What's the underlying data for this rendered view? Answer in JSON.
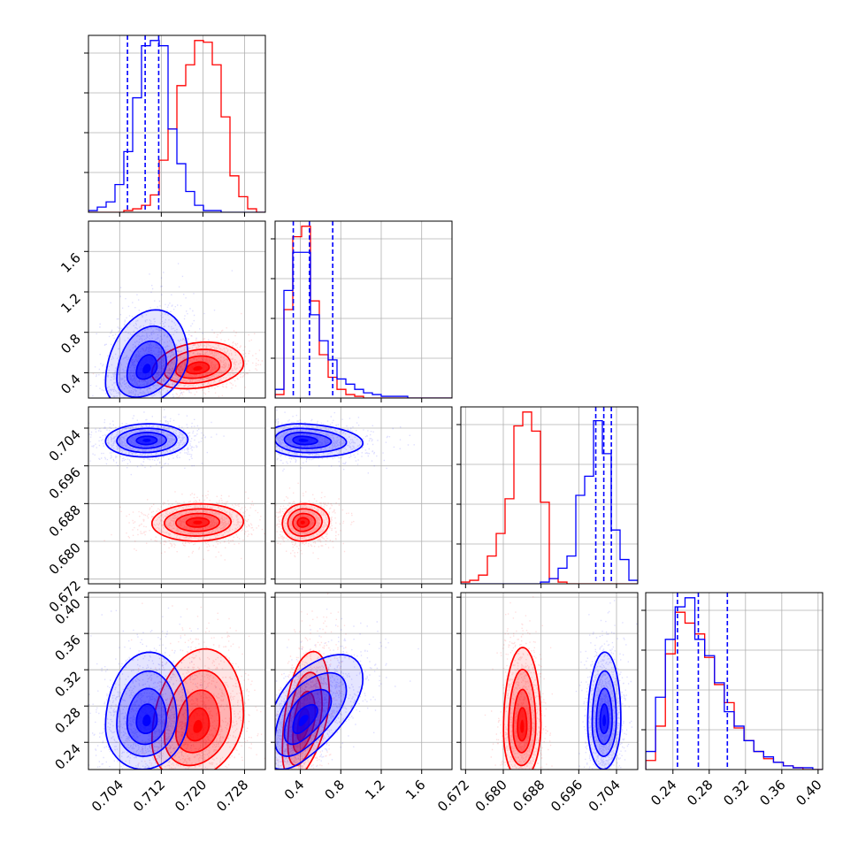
{
  "chart_data": {
    "type": "corner",
    "colors": {
      "series_a": "#0000ff",
      "series_b": "#ff0000",
      "grid": "#b0b0b0"
    },
    "grid": true,
    "quantile_lines": "dashed",
    "parameters": [
      {
        "id": "p0",
        "range": [
          0.698,
          0.732
        ],
        "ticks": [
          0.704,
          0.712,
          0.72,
          0.728
        ],
        "tick_labels": [
          "0.704",
          "0.712",
          "0.720",
          "0.728"
        ],
        "quantiles_blue": [
          0.7055,
          0.7089,
          0.7115
        ]
      },
      {
        "id": "p1",
        "range": [
          0.15,
          1.9
        ],
        "ticks": [
          0.4,
          0.8,
          1.2,
          1.6
        ],
        "tick_labels": [
          "0.4",
          "0.8",
          "1.2",
          "1.6"
        ],
        "quantiles_blue": [
          0.33,
          0.49,
          0.72
        ]
      },
      {
        "id": "p2",
        "range": [
          0.671,
          0.7085
        ],
        "ticks": [
          0.672,
          0.68,
          0.688,
          0.696,
          0.704
        ],
        "tick_labels": [
          "0.672",
          "0.680",
          "0.688",
          "0.696",
          "0.704"
        ],
        "quantiles_blue": [
          0.6996,
          0.7013,
          0.7029
        ]
      },
      {
        "id": "p3",
        "range": [
          0.21,
          0.405
        ],
        "ticks": [
          0.24,
          0.28,
          0.32,
          0.36,
          0.4
        ],
        "tick_labels": [
          "0.24",
          "0.28",
          "0.32",
          "0.36",
          "0.40"
        ],
        "quantiles_blue": [
          0.245,
          0.268,
          0.3
        ]
      }
    ],
    "histograms": [
      {
        "param": 0,
        "edges": [
          0.698,
          0.732
        ],
        "blue": [
          1,
          3,
          6,
          16,
          35,
          66,
          96,
          99,
          96,
          48,
          28,
          12,
          4,
          1,
          1,
          0,
          0,
          0,
          0,
          0
        ],
        "red": [
          0,
          0,
          0,
          0,
          1,
          2,
          4,
          10,
          30,
          48,
          73,
          85,
          99,
          98,
          85,
          55,
          21,
          9,
          2,
          0
        ]
      },
      {
        "param": 1,
        "edges": [
          0.15,
          1.9
        ],
        "blue": [
          5,
          62,
          84,
          84,
          48,
          33,
          22,
          11,
          8,
          5,
          3,
          2,
          1,
          1,
          1,
          0,
          0,
          0,
          0,
          0
        ],
        "red": [
          2,
          51,
          93,
          99,
          56,
          25,
          12,
          5,
          2,
          1,
          0,
          0,
          0,
          0,
          0,
          0,
          0,
          0,
          0,
          0
        ]
      },
      {
        "param": 2,
        "edges": [
          0.671,
          0.7085
        ],
        "blue": [
          0,
          0,
          0,
          0,
          0,
          0,
          0,
          0,
          0,
          1,
          3,
          9,
          16,
          51,
          62,
          94,
          75,
          31,
          14,
          2
        ],
        "red": [
          1,
          2,
          5,
          16,
          29,
          49,
          91,
          99,
          88,
          47,
          3,
          1,
          0,
          0,
          0,
          0,
          0,
          0,
          0,
          0
        ]
      },
      {
        "param": 3,
        "edges": [
          0.21,
          0.405
        ],
        "blue": [
          10,
          40,
          72,
          90,
          95,
          72,
          63,
          48,
          32,
          24,
          16,
          10,
          7,
          4,
          2,
          1,
          1,
          0
        ],
        "red": [
          5,
          24,
          64,
          87,
          81,
          75,
          62,
          47,
          37,
          23,
          16,
          10,
          6,
          4,
          2,
          1,
          0,
          0
        ]
      }
    ],
    "panels_2d": [
      {
        "row": 1,
        "col": 0,
        "blue": {
          "center": [
            0.7092,
            0.43
          ],
          "spread": [
            0.0036,
            0.17
          ],
          "rho": 0.35,
          "skew_y": 0.65
        },
        "red": {
          "center": [
            0.719,
            0.44
          ],
          "spread": [
            0.004,
            0.09
          ],
          "rho": 0.25,
          "skew_y": 0.35
        }
      },
      {
        "row": 2,
        "col": 0,
        "blue": {
          "center": [
            0.7092,
            0.7014
          ],
          "spread": [
            0.0036,
            0.0016
          ],
          "rho": 0.05,
          "skew_y": 0
        },
        "red": {
          "center": [
            0.719,
            0.684
          ],
          "spread": [
            0.004,
            0.0018
          ],
          "rho": 0.05,
          "skew_y": 0
        }
      },
      {
        "row": 2,
        "col": 1,
        "blue": {
          "center": [
            0.42,
            0.7014
          ],
          "spread": [
            0.17,
            0.0016
          ],
          "rho": -0.1,
          "skew_y": 0,
          "skew_x": 0.6
        },
        "red": {
          "center": [
            0.42,
            0.684
          ],
          "spread": [
            0.09,
            0.0018
          ],
          "rho": 0.05,
          "skew_y": 0,
          "skew_x": 0.35
        }
      },
      {
        "row": 3,
        "col": 0,
        "blue": {
          "center": [
            0.7092,
            0.263
          ],
          "spread": [
            0.0036,
            0.024
          ],
          "rho": 0.1,
          "skew_y": 0.45
        },
        "red": {
          "center": [
            0.719,
            0.256
          ],
          "spread": [
            0.004,
            0.026
          ],
          "rho": 0.25,
          "skew_y": 0.55
        }
      },
      {
        "row": 3,
        "col": 1,
        "blue": {
          "center": [
            0.42,
            0.263
          ],
          "spread": [
            0.17,
            0.024
          ],
          "rho": 0.55,
          "skew_y": 0.3,
          "skew_x": 0.6
        },
        "red": {
          "center": [
            0.42,
            0.256
          ],
          "spread": [
            0.09,
            0.026
          ],
          "rho": 0.45,
          "skew_y": 0.5,
          "skew_x": 0.35
        }
      },
      {
        "row": 3,
        "col": 2,
        "blue": {
          "center": [
            0.7014,
            0.263
          ],
          "spread": [
            0.0016,
            0.024
          ],
          "rho": 0.05,
          "skew_y": 0.45
        },
        "red": {
          "center": [
            0.684,
            0.256
          ],
          "spread": [
            0.0018,
            0.026
          ],
          "rho": 0.05,
          "skew_y": 0.55
        }
      }
    ]
  }
}
